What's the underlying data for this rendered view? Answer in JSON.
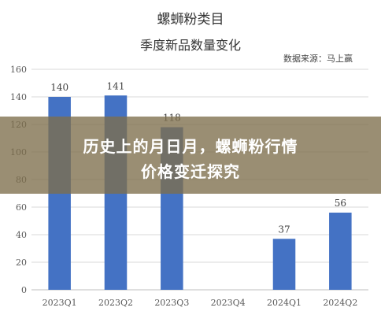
{
  "chart_data": {
    "type": "bar",
    "title": "螺蛳粉类目",
    "subtitle": "季度新品数量变化",
    "source": "数据来源：马上赢",
    "categories": [
      "2023Q1",
      "2023Q2",
      "2023Q3",
      "2023Q4",
      "2024Q1",
      "2024Q2"
    ],
    "values": [
      140,
      141,
      118,
      null,
      37,
      56
    ],
    "data_labels": [
      "140",
      "141",
      "118",
      "",
      "37",
      "56"
    ],
    "ylim": [
      0,
      160
    ],
    "yticks": [
      0,
      20,
      40,
      60,
      80,
      100,
      120,
      140,
      160
    ],
    "grid": true,
    "bar_color": "#4472C4",
    "legend": "none"
  },
  "overlay": {
    "line1": "历史上的月日月，螺蛳粉行情",
    "line2": "价格变迁探究"
  }
}
